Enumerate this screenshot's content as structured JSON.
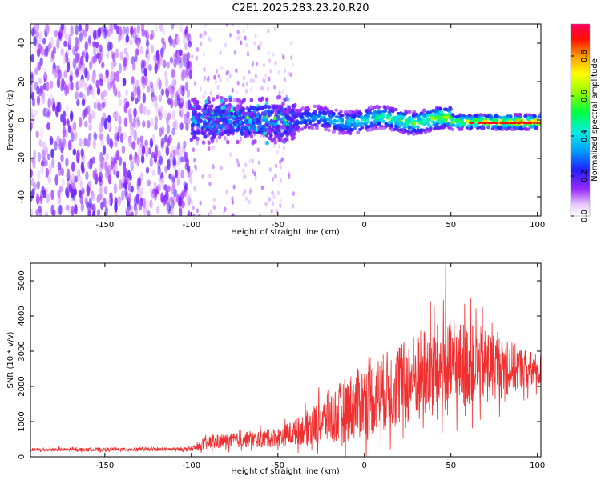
{
  "title": "C2E1.2025.283.23.20.R20",
  "chart_data": [
    {
      "type": "heatmap",
      "xlabel": "Height of straight line (km)",
      "ylabel": "Frequency (Hz)",
      "xlim": [
        -193,
        102
      ],
      "ylim": [
        -50,
        50
      ],
      "xticks": [
        -150,
        -100,
        -50,
        0,
        50,
        100
      ],
      "xtick_labels": [
        "-150",
        "-100",
        "-50",
        "0",
        "50",
        "100"
      ],
      "yticks": [
        -40,
        -20,
        0,
        20,
        40
      ],
      "ytick_labels": [
        "-40",
        "-20",
        "0",
        "20",
        "40"
      ],
      "colorbar": {
        "label": "Normalized spectral amplitude",
        "range": [
          0,
          0.96
        ],
        "ticks": [
          0,
          0.2,
          0.4,
          0.6,
          0.8
        ],
        "tick_labels": [
          "0.0",
          "0.2",
          "0.4",
          "0.6",
          "0.8"
        ]
      },
      "regions": [
        {
          "description_key": "noise",
          "x_range": [
            -193,
            -100
          ],
          "freq_range": [
            -50,
            50
          ],
          "amplitude": 0.15
        },
        {
          "description_key": "transition",
          "x_range": [
            -100,
            -40
          ],
          "freq_center": 0,
          "freq_halfwidth": 12,
          "amplitude": 0.3
        },
        {
          "description_key": "signal",
          "x_range": [
            -40,
            102
          ],
          "freq_center": 0,
          "freq_halfwidth": 4,
          "amplitude": 0.9
        }
      ]
    },
    {
      "type": "line",
      "xlabel": "Height of straight line (km)",
      "ylabel": "SNR (10 * v/v)",
      "xlim": [
        -193,
        102
      ],
      "ylim": [
        0,
        5500
      ],
      "xticks": [
        -150,
        -100,
        -50,
        0,
        50,
        100
      ],
      "xtick_labels": [
        "-150",
        "-100",
        "-50",
        "0",
        "50",
        "100"
      ],
      "yticks": [
        0,
        1000,
        2000,
        3000,
        4000,
        5000
      ],
      "ytick_labels": [
        "0",
        "1000",
        "2000",
        "3000",
        "4000",
        "5000"
      ],
      "color": "#f03030",
      "series": [
        {
          "name": "SNR",
          "x": [
            -193,
            -175,
            -150,
            -125,
            -100,
            -95,
            -90,
            -80,
            -70,
            -60,
            -50,
            -40,
            -30,
            -20,
            -10,
            0,
            10,
            20,
            30,
            40,
            50,
            60,
            70,
            80,
            90,
            100,
            102
          ],
          "mean": [
            200,
            200,
            210,
            210,
            220,
            300,
            400,
            450,
            480,
            500,
            560,
            700,
            900,
            1100,
            1350,
            1600,
            1800,
            2000,
            2300,
            2500,
            2550,
            2650,
            2600,
            2550,
            2500,
            2450,
            2450
          ],
          "amplitude": [
            60,
            60,
            60,
            60,
            70,
            150,
            250,
            250,
            270,
            300,
            350,
            450,
            700,
            900,
            1200,
            1300,
            1400,
            1500,
            1600,
            1600,
            1600,
            1500,
            1300,
            1100,
            800,
            600,
            600
          ],
          "peak": {
            "x": 47,
            "y": 5450
          }
        }
      ]
    }
  ]
}
